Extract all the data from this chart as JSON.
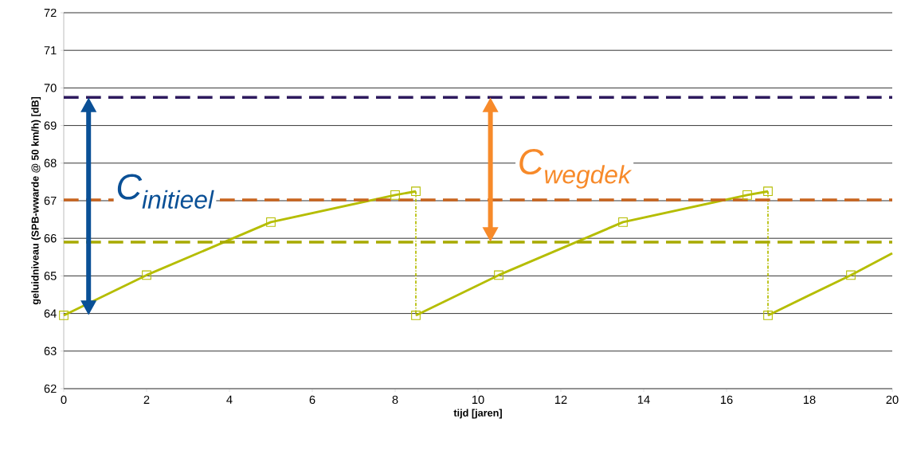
{
  "chart_data": {
    "type": "line",
    "xlabel": "tijd [jaren]",
    "ylabel": "geluidniveau (SPB-wwarde @ 50 km/h) [dB]",
    "xlim": [
      0,
      20
    ],
    "xticks": [
      0,
      2,
      4,
      6,
      8,
      10,
      12,
      14,
      16,
      18,
      20
    ],
    "ylim": [
      62,
      72
    ],
    "yticks": [
      62,
      63,
      64,
      65,
      66,
      67,
      68,
      69,
      70,
      71,
      72
    ],
    "grid": "y",
    "series": [
      {
        "type": "line",
        "color": "#b5bd00",
        "marker": "none",
        "line_style": "solid",
        "x": [
          0,
          2,
          5,
          8,
          8.5
        ],
        "values": [
          63.95,
          65.02,
          66.43,
          67.15,
          67.25
        ]
      },
      {
        "type": "line",
        "color": "#b5bd00",
        "marker": "none",
        "line_style": "solid",
        "x": [
          8.5,
          10.5,
          13.5,
          16.5,
          17
        ],
        "values": [
          63.95,
          65.02,
          66.43,
          67.15,
          67.25
        ]
      },
      {
        "type": "line",
        "color": "#b5bd00",
        "marker": "none",
        "line_style": "solid",
        "x": [
          17,
          19,
          20
        ],
        "values": [
          63.95,
          65.02,
          65.6
        ]
      },
      {
        "type": "scatter",
        "color": "#b5bd00",
        "marker": "square",
        "x": [
          0,
          2,
          5,
          8,
          8.5,
          8.5,
          10.5,
          13.5,
          16.5,
          17,
          17,
          19
        ],
        "values": [
          63.95,
          65.02,
          66.43,
          67.15,
          67.25,
          63.95,
          65.02,
          66.43,
          67.15,
          67.25,
          63.95,
          65.02
        ]
      },
      {
        "type": "line",
        "color": "#b5bd00",
        "marker": "none",
        "line_style": "dotted",
        "x": [
          8.5,
          8.5
        ],
        "values": [
          67.25,
          63.95
        ]
      },
      {
        "type": "line",
        "color": "#b5bd00",
        "marker": "none",
        "line_style": "dotted",
        "x": [
          17,
          17
        ],
        "values": [
          67.25,
          63.95
        ]
      }
    ],
    "ref_lines": [
      {
        "axis": "y",
        "value": 69.75,
        "color": "#2e1a5e",
        "line_style": "dashed"
      },
      {
        "axis": "y",
        "value": 67.02,
        "color": "#c8641e",
        "line_style": "dashed"
      },
      {
        "axis": "y",
        "value": 65.9,
        "color": "#a8aa00",
        "line_style": "dashed"
      }
    ],
    "annotations": [
      "C$_{initieel}$",
      "C$_{wegdek}$"
    ]
  }
}
